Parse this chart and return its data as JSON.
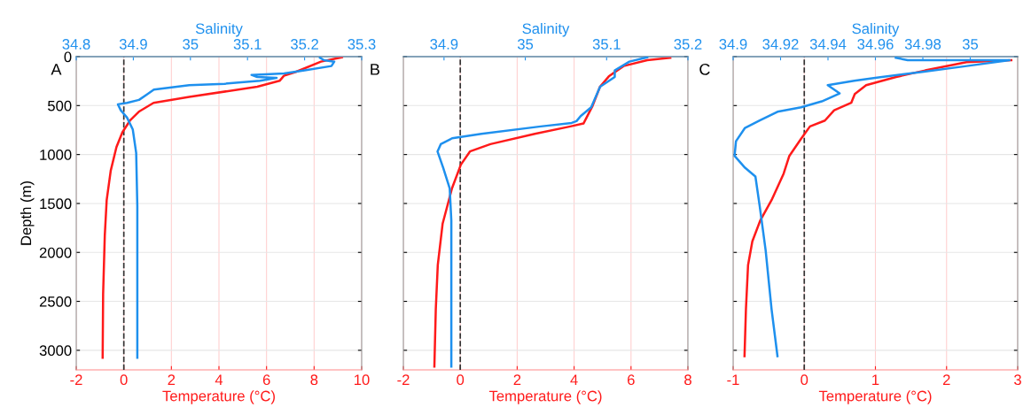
{
  "chart_data": [
    {
      "type": "line",
      "ylabel": "Depth (m)",
      "xlabel": "Temperature (°C)",
      "x2label": "Salinity",
      "annotations": [
        "A"
      ],
      "ylim": [
        3200,
        0
      ],
      "yticks": [
        0,
        500,
        1000,
        1500,
        2000,
        2500,
        3000
      ],
      "xlim": [
        -2,
        10
      ],
      "xticks": [
        -2,
        0,
        2,
        4,
        6,
        8,
        10
      ],
      "x2lim": [
        34.8,
        35.3
      ],
      "x2ticks": [
        34.8,
        34.9,
        35,
        35.1,
        35.2,
        35.3
      ],
      "grid": true,
      "ref_lines": [
        {
          "axis": "x",
          "value": 0,
          "color": "#333333",
          "line_style": "dashed"
        }
      ],
      "series": [
        {
          "color": "#ff1a1a",
          "x": [
            9.17,
            8.29,
            7.23,
            6.73,
            6.55,
            5.61,
            2.75,
            1.25,
            0.63,
            0.26,
            -0.06,
            -0.31,
            -0.55,
            -0.72,
            -0.8,
            -0.87,
            -0.89
          ],
          "values": [
            6,
            51,
            156,
            196,
            247,
            307,
            412,
            472,
            563,
            653,
            773,
            924,
            1165,
            1466,
            1827,
            2428,
            3075
          ]
        },
        {
          "color": "#1e90ee",
          "axis": "x2",
          "x": [
            35.227,
            35.234,
            35.252,
            35.247,
            35.2,
            35.164,
            35.107,
            35.117,
            35.151,
            35.122,
            35.06,
            34.998,
            34.936,
            34.925,
            34.91,
            34.889,
            34.873,
            34.878,
            34.889,
            34.899,
            34.905,
            34.907,
            34.907
          ],
          "values": [
            12,
            36,
            51,
            96,
            141,
            172,
            187,
            208,
            217,
            247,
            277,
            292,
            337,
            382,
            442,
            472,
            487,
            548,
            623,
            743,
            984,
            1526,
            3075
          ]
        }
      ]
    },
    {
      "type": "line",
      "xlabel": "Temperature (°C)",
      "x2label": "Salinity",
      "annotations": [
        "B"
      ],
      "tick_labels": "x",
      "ylim": [
        3200,
        0
      ],
      "yticks": [
        0,
        500,
        1000,
        1500,
        2000,
        2500,
        3000
      ],
      "xlim": [
        -2,
        8
      ],
      "xticks": [
        -2,
        0,
        2,
        4,
        6,
        8
      ],
      "x2lim": [
        34.85,
        35.2
      ],
      "x2ticks": [
        34.9,
        35,
        35.1,
        35.2
      ],
      "grid": true,
      "ref_lines": [
        {
          "axis": "x",
          "value": 0,
          "color": "#333333",
          "line_style": "dashed"
        }
      ],
      "series": [
        {
          "color": "#ff1a1a",
          "x": [
            7.38,
            6.57,
            5.74,
            5.22,
            4.91,
            4.65,
            4.33,
            3.87,
            2.62,
            1.06,
            0.34,
            0.02,
            -0.29,
            -0.62,
            -0.79,
            -0.86,
            -0.91
          ],
          "values": [
            12,
            36,
            96,
            202,
            307,
            503,
            683,
            713,
            788,
            894,
            969,
            1104,
            1345,
            1706,
            2128,
            2579,
            3166
          ]
        },
        {
          "color": "#1e90ee",
          "axis": "x2",
          "x": [
            35.15,
            35.128,
            35.11,
            35.11,
            35.092,
            35.081,
            35.068,
            35.063,
            35.057,
            35.019,
            34.946,
            34.91,
            34.896,
            34.892,
            34.899,
            34.907,
            34.909,
            34.909
          ],
          "values": [
            6,
            51,
            141,
            208,
            307,
            518,
            608,
            659,
            677,
            713,
            788,
            834,
            894,
            969,
            1135,
            1345,
            1676,
            3166
          ]
        }
      ]
    },
    {
      "type": "line",
      "xlabel": "Temperature (°C)",
      "x2label": "Salinity",
      "annotations": [
        "C"
      ],
      "tick_labels": "x",
      "ylim": [
        3200,
        0
      ],
      "yticks": [
        0,
        500,
        1000,
        1500,
        2000,
        2500,
        3000
      ],
      "xlim": [
        -1,
        3
      ],
      "xticks": [
        -1,
        0,
        1,
        2,
        3
      ],
      "x2lim": [
        34.9,
        35.02
      ],
      "x2ticks": [
        34.9,
        34.92,
        34.94,
        34.96,
        34.98,
        35
      ],
      "grid": true,
      "ref_lines": [
        {
          "axis": "x",
          "value": 0,
          "color": "#333333",
          "line_style": "dashed"
        }
      ],
      "series": [
        {
          "color": "#ff1a1a",
          "x": [
            2.91,
            2.28,
            1.7,
            1.29,
            0.87,
            0.71,
            0.66,
            0.42,
            0.29,
            0.08,
            -0.04,
            -0.21,
            -0.29,
            -0.46,
            -0.62,
            -0.73,
            -0.79,
            -0.82,
            -0.84
          ],
          "values": [
            36,
            57,
            141,
            208,
            292,
            382,
            472,
            548,
            653,
            713,
            834,
            1014,
            1195,
            1466,
            1676,
            1887,
            2128,
            2579,
            3060
          ]
        },
        {
          "color": "#1e90ee",
          "axis": "x2",
          "x": [
            34.9686,
            34.9736,
            35.0166,
            34.9985,
            34.9798,
            34.9599,
            34.9511,
            34.9399,
            34.9449,
            34.9374,
            34.9287,
            34.9187,
            34.9112,
            34.905,
            34.9012,
            34.9006,
            34.905,
            34.9094,
            34.9112,
            34.9137,
            34.9162,
            34.9187
          ],
          "values": [
            12,
            36,
            36,
            96,
            156,
            217,
            247,
            292,
            376,
            457,
            518,
            563,
            653,
            728,
            864,
            1014,
            1135,
            1225,
            1526,
            1977,
            2579,
            3060
          ]
        }
      ]
    }
  ]
}
